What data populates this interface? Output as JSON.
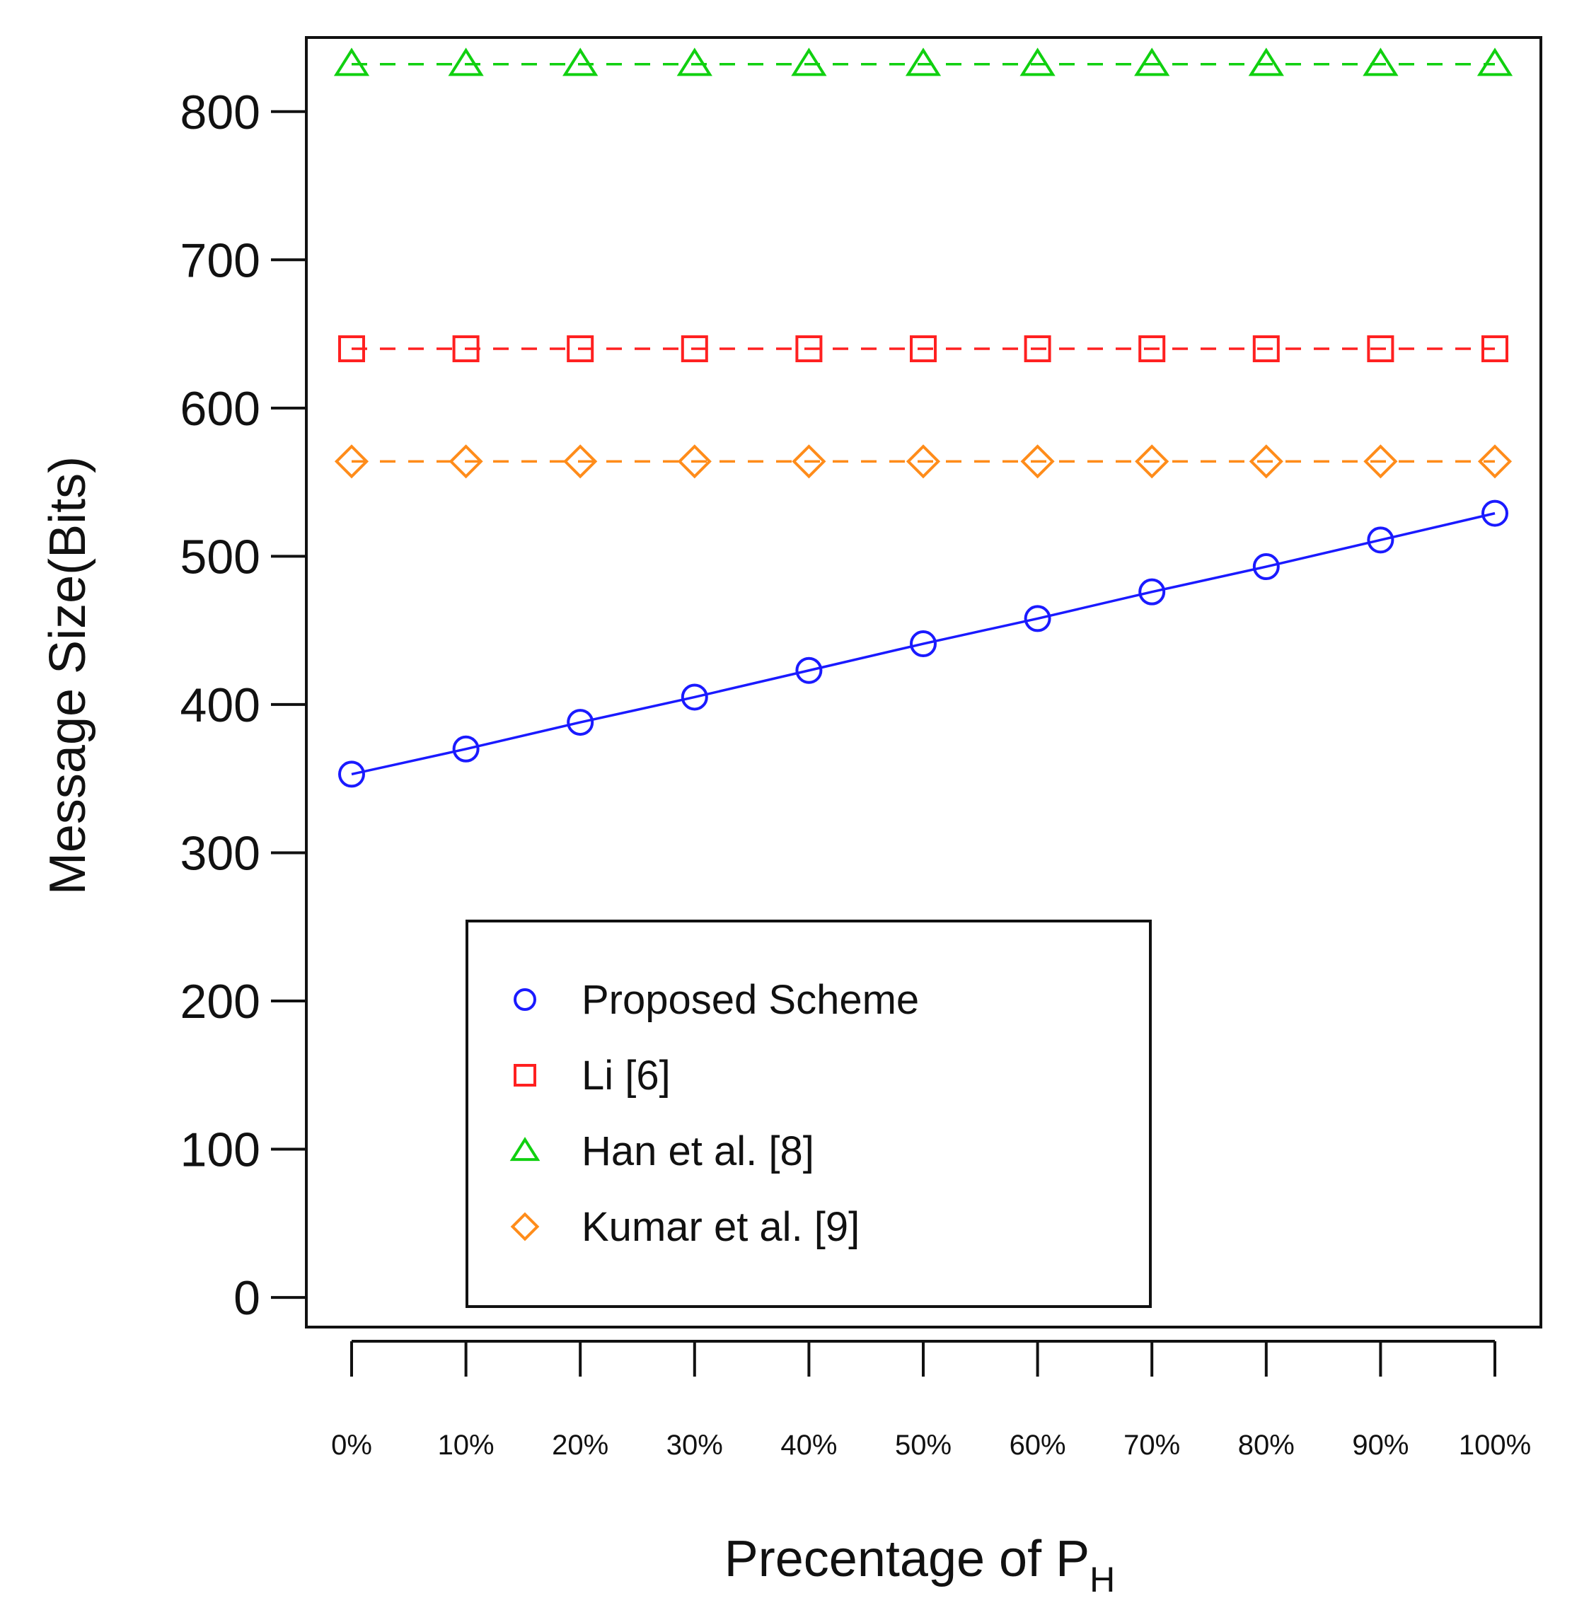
{
  "chart_data": {
    "type": "line",
    "title": "",
    "xlabel": "Precentage of P",
    "xlabel_subscript": "H",
    "ylabel": "Message Size(Bits)",
    "categories": [
      "0%",
      "10%",
      "20%",
      "30%",
      "40%",
      "50%",
      "60%",
      "70%",
      "80%",
      "90%",
      "100%"
    ],
    "ylim": [
      -20,
      850
    ],
    "yticks": [
      0,
      100,
      200,
      300,
      400,
      500,
      600,
      700,
      800
    ],
    "grid": false,
    "legend_position": "bottom-left",
    "series": [
      {
        "name": "Proposed Scheme",
        "color": "#1a1aff",
        "marker": "circle",
        "line_style": "solid",
        "values": [
          353,
          370,
          388,
          405,
          423,
          441,
          458,
          476,
          493,
          511,
          529
        ]
      },
      {
        "name": "Li [6]",
        "color": "#ff2020",
        "marker": "square",
        "line_style": "dashed",
        "values": [
          640,
          640,
          640,
          640,
          640,
          640,
          640,
          640,
          640,
          640,
          640
        ]
      },
      {
        "name": "Han et al. [8]",
        "color": "#10d010",
        "marker": "triangle",
        "line_style": "dashed",
        "values": [
          832,
          832,
          832,
          832,
          832,
          832,
          832,
          832,
          832,
          832,
          832
        ]
      },
      {
        "name": "Kumar et al. [9]",
        "color": "#ff8c1a",
        "marker": "diamond",
        "line_style": "dashed",
        "values": [
          564,
          564,
          564,
          564,
          564,
          564,
          564,
          564,
          564,
          564,
          564
        ]
      }
    ]
  }
}
